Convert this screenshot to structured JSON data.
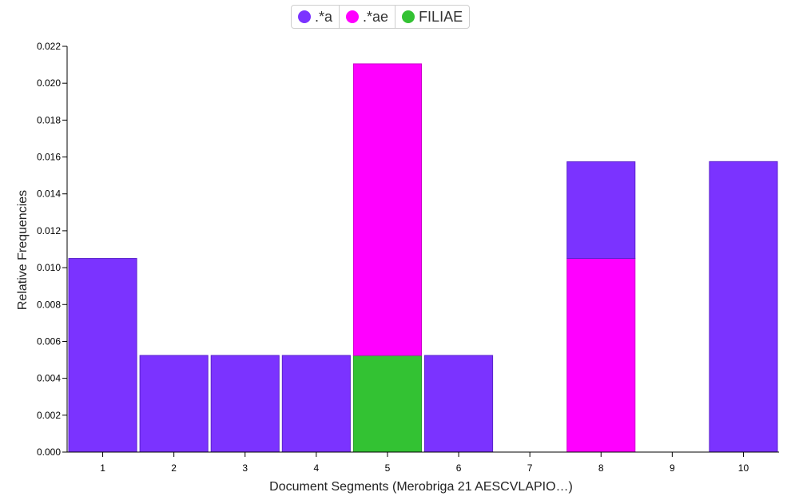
{
  "chart_data": {
    "type": "bar",
    "stacked": true,
    "categories": [
      "1",
      "2",
      "3",
      "4",
      "5",
      "6",
      "7",
      "8",
      "9",
      "10"
    ],
    "series": [
      {
        "name": "FILIAE",
        "color": "#33c233",
        "values": [
          0,
          0,
          0,
          0,
          0.00524,
          0,
          0,
          0,
          0,
          0
        ]
      },
      {
        "name": ".*ae",
        "color": "#ff00ff",
        "values": [
          0,
          0,
          0,
          0,
          0.01581,
          0,
          0,
          0.0105,
          0,
          0
        ]
      },
      {
        "name": ".*a",
        "color": "#7b33ff",
        "values": [
          0.0105,
          0.00524,
          0.00524,
          0.00524,
          0,
          0.00524,
          0,
          0.00524,
          0,
          0.01575
        ]
      }
    ],
    "legend_order": [
      ".*a",
      ".*ae",
      "FILIAE"
    ],
    "legend_position": "top-center",
    "xlabel": "Document Segments (Merobriga 21 AESCVLAPIO…)",
    "ylabel": "Relative Frequencies",
    "ylim": [
      0,
      0.022
    ],
    "yticks": [
      "0.000",
      "0.002",
      "0.004",
      "0.006",
      "0.008",
      "0.010",
      "0.012",
      "0.014",
      "0.016",
      "0.018",
      "0.020",
      "0.022"
    ],
    "grid": false
  }
}
